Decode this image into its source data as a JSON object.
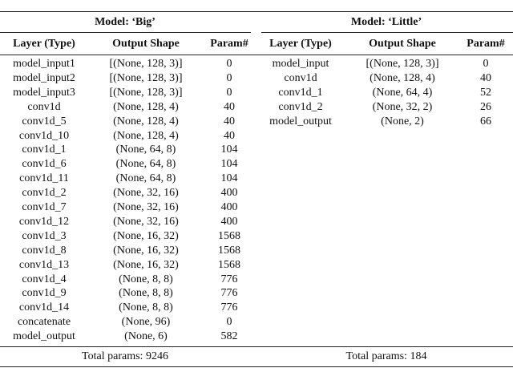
{
  "table": {
    "models": [
      {
        "title": "Model: ‘Big’",
        "headers": [
          "Layer (Type)",
          "Output Shape",
          "Param#"
        ],
        "rows": [
          [
            "model_input1",
            "[(None, 128, 3)]",
            0
          ],
          [
            "model_input2",
            "[(None, 128, 3)]",
            0
          ],
          [
            "model_input3",
            "[(None, 128, 3)]",
            0
          ],
          [
            "conv1d",
            "(None, 128, 4)",
            40
          ],
          [
            "conv1d_5",
            "(None, 128, 4)",
            40
          ],
          [
            "conv1d_10",
            "(None, 128, 4)",
            40
          ],
          [
            "conv1d_1",
            "(None, 64, 8)",
            104
          ],
          [
            "conv1d_6",
            "(None, 64, 8)",
            104
          ],
          [
            "conv1d_11",
            "(None, 64, 8)",
            104
          ],
          [
            "conv1d_2",
            "(None, 32, 16)",
            400
          ],
          [
            "conv1d_7",
            "(None, 32, 16)",
            400
          ],
          [
            "conv1d_12",
            "(None, 32, 16)",
            400
          ],
          [
            "conv1d_3",
            "(None, 16, 32)",
            1568
          ],
          [
            "conv1d_8",
            "(None, 16, 32)",
            1568
          ],
          [
            "conv1d_13",
            "(None, 16, 32)",
            1568
          ],
          [
            "conv1d_4",
            "(None, 8, 8)",
            776
          ],
          [
            "conv1d_9",
            "(None, 8, 8)",
            776
          ],
          [
            "conv1d_14",
            "(None, 8, 8)",
            776
          ],
          [
            "concatenate",
            "(None, 96)",
            0
          ],
          [
            "model_output",
            "(None, 6)",
            582
          ]
        ],
        "total": "Total params: 9246"
      },
      {
        "title": "Model: ‘Little’",
        "headers": [
          "Layer (Type)",
          "Output Shape",
          "Param#"
        ],
        "rows": [
          [
            "model_input",
            "[(None, 128, 3)]",
            0
          ],
          [
            "conv1d",
            "(None, 128, 4)",
            40
          ],
          [
            "conv1d_1",
            "(None, 64, 4)",
            52
          ],
          [
            "conv1d_2",
            "(None, 32, 2)",
            26
          ],
          [
            "model_output",
            "(None, 2)",
            66
          ]
        ],
        "total": "Total params: 184"
      }
    ]
  }
}
